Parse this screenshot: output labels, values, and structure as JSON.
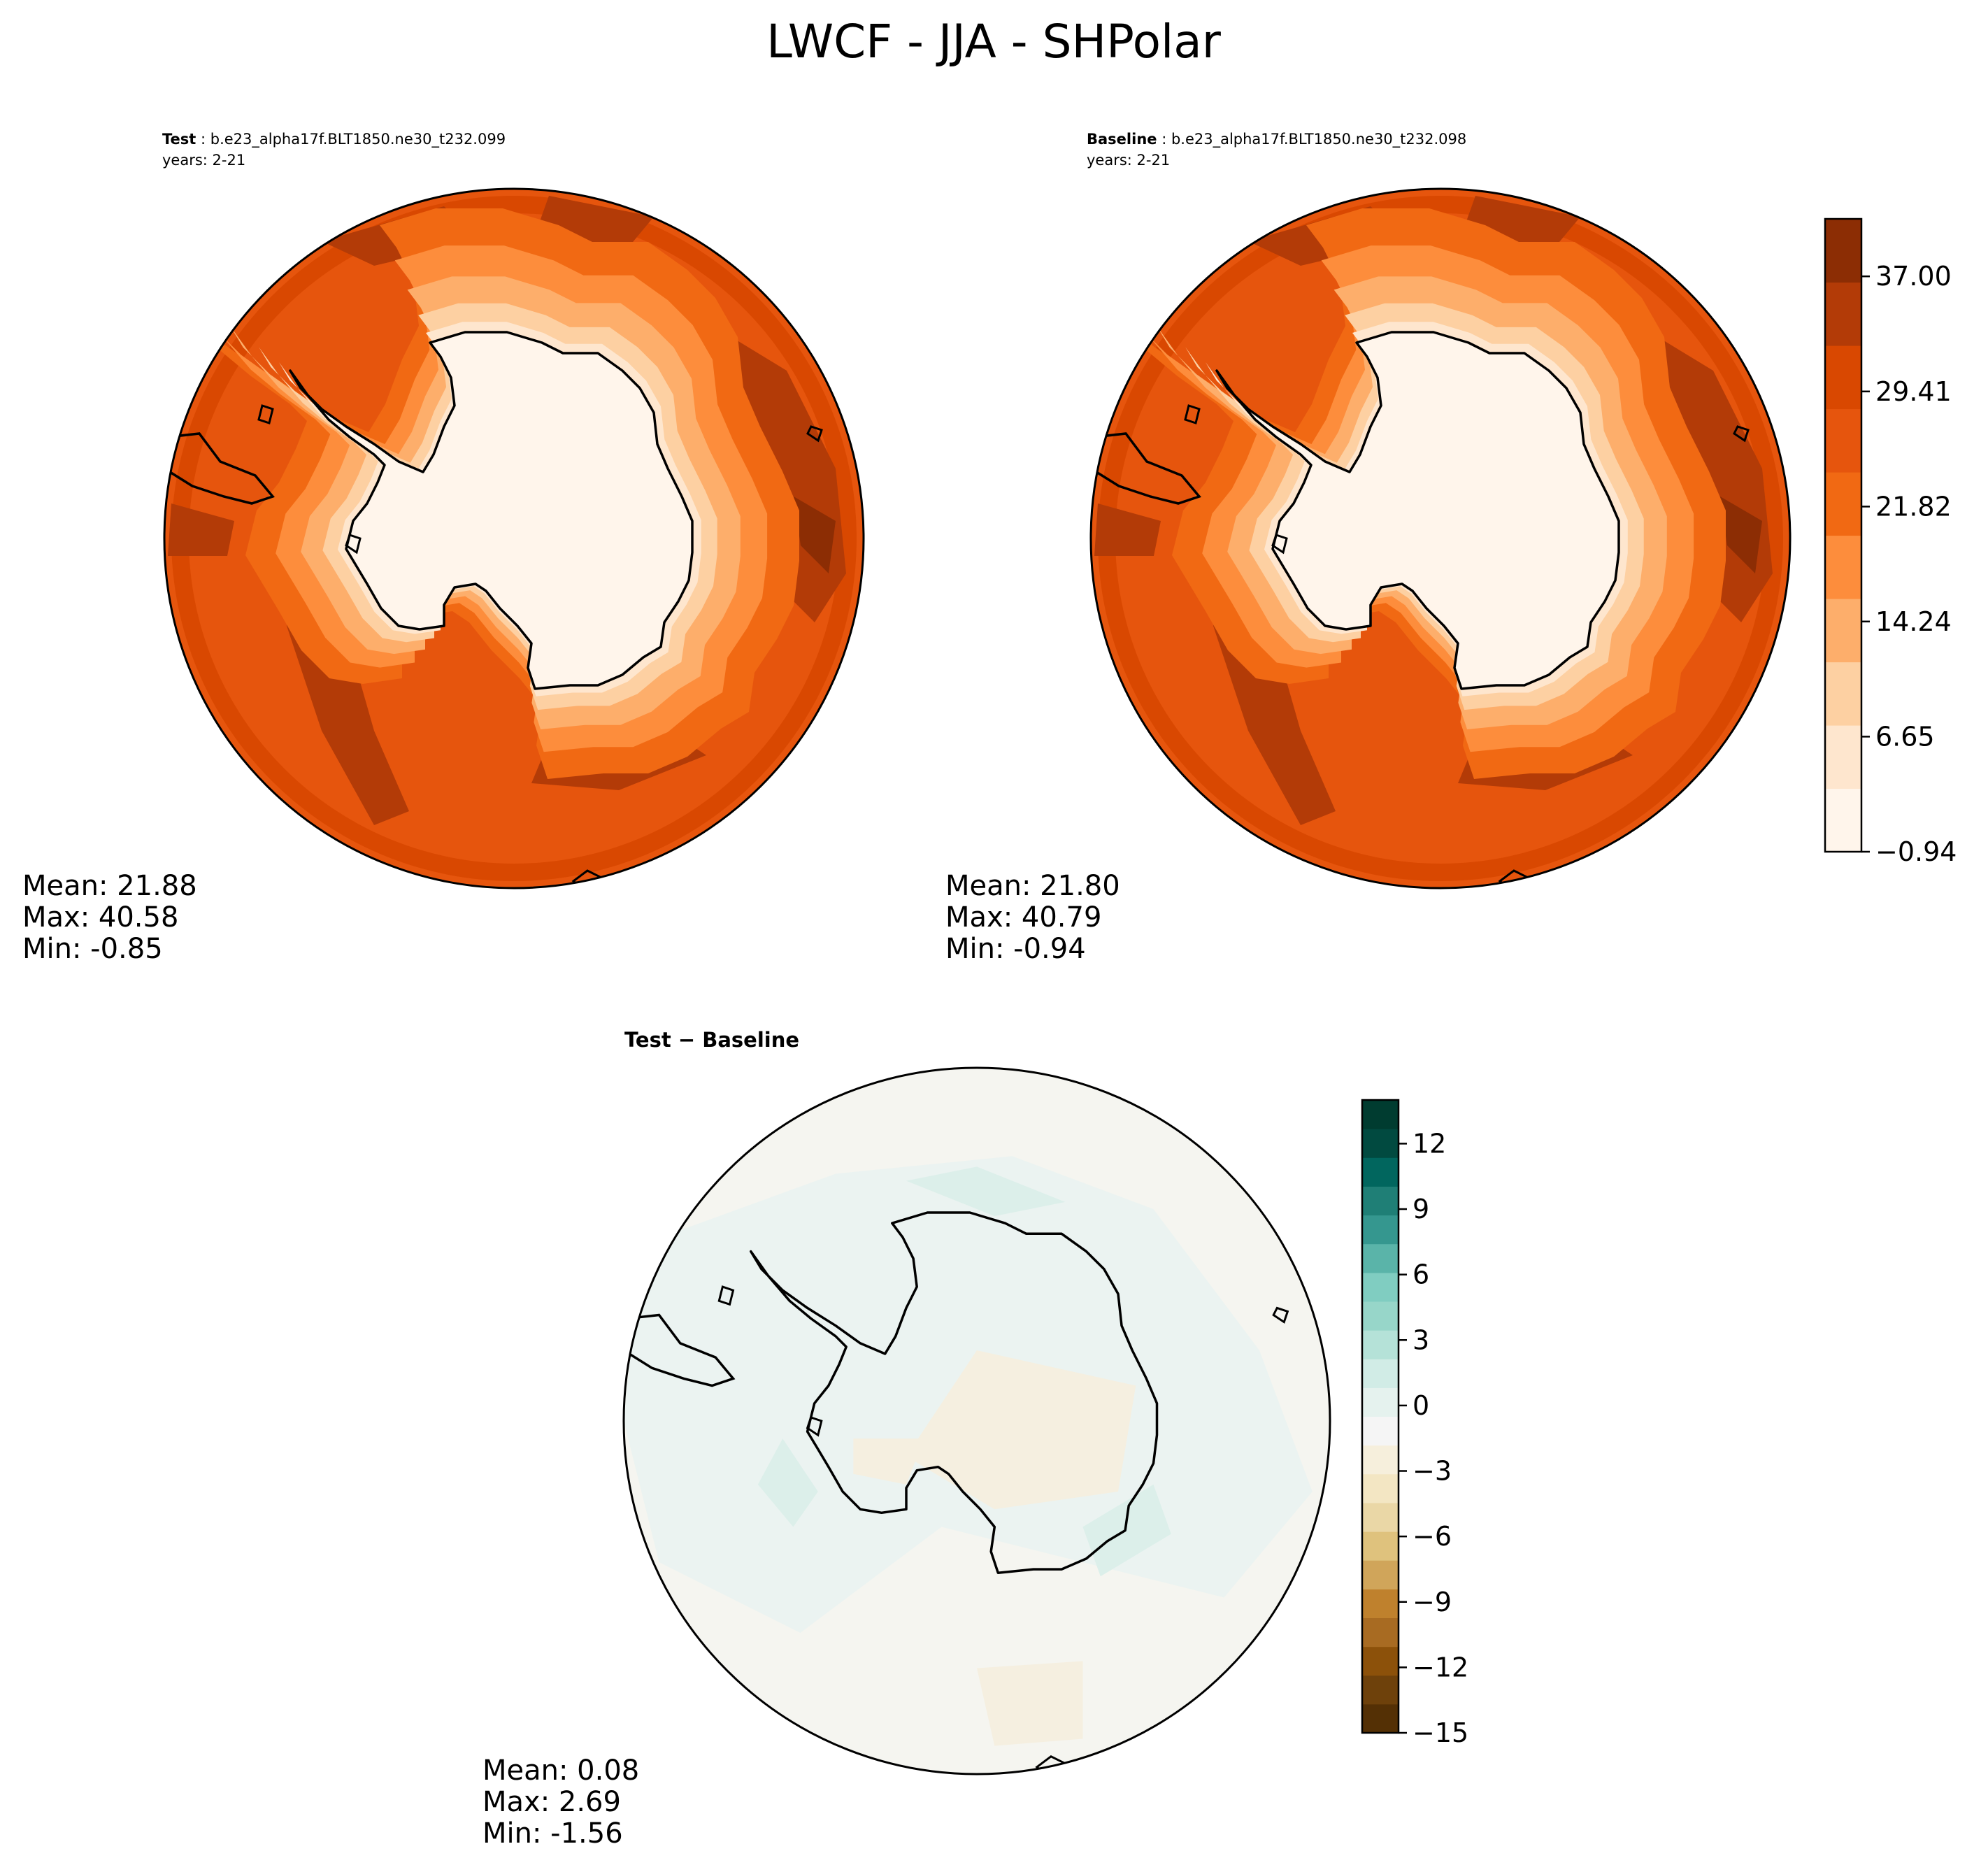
{
  "title": "LWCF - JJA - SHPolar",
  "palettes": {
    "field": [
      "#fff5eb",
      "#fee6ce",
      "#fdd0a2",
      "#fdae6b",
      "#fd8d3c",
      "#f16913",
      "#e6550d",
      "#d94801",
      "#b33b07",
      "#8c2d04"
    ],
    "diff": [
      "#543005",
      "#6e410b",
      "#8c510a",
      "#a86b22",
      "#bf812d",
      "#d0a55a",
      "#dfc27d",
      "#eaD7a6",
      "#f3e6c3",
      "#f6efdc",
      "#f5f5f5",
      "#e5f2ee",
      "#d1ece6",
      "#b5e2d8",
      "#97d6c9",
      "#80cdc1",
      "#5ab4a9",
      "#35978f",
      "#1f7f76",
      "#01665e",
      "#014a40",
      "#003c30"
    ],
    "coast": "#000000"
  },
  "panels": {
    "test": {
      "label_bold": "Test",
      "label_rest": " : b.e23_alpha17f.BLT1850.ne30_t232.099",
      "years": "years: 2-21",
      "stats": [
        "Mean: 21.88",
        "Max: 40.58",
        "Min: -0.85"
      ]
    },
    "baseline": {
      "label_bold": "Baseline",
      "label_rest": " : b.e23_alpha17f.BLT1850.ne30_t232.098",
      "years": "years: 2-21",
      "stats": [
        "Mean: 21.80",
        "Max: 40.79",
        "Min: -0.94"
      ]
    },
    "diff": {
      "label": "Test − Baseline",
      "stats": [
        "Mean:  0.08",
        "Max:  2.69",
        "Min: -1.56"
      ]
    }
  },
  "chart_data": [
    {
      "type": "heatmap",
      "projection": "South Polar Stereographic",
      "name": "Test",
      "stats": {
        "mean": 21.88,
        "max": 40.58,
        "min": -0.85
      },
      "range": [
        -0.94,
        40.79
      ]
    },
    {
      "type": "heatmap",
      "projection": "South Polar Stereographic",
      "name": "Baseline",
      "stats": {
        "mean": 21.8,
        "max": 40.79,
        "min": -0.94
      },
      "range": [
        -0.94,
        40.79
      ],
      "colorbar": {
        "ticks": [
          -0.94,
          6.65,
          14.24,
          21.82,
          29.41,
          37.0
        ],
        "tick_labels": [
          "−0.94",
          "6.65",
          "14.24",
          "21.82",
          "29.41",
          "37.00"
        ],
        "levels": 10
      }
    },
    {
      "type": "heatmap",
      "projection": "South Polar Stereographic",
      "name": "Test − Baseline",
      "stats": {
        "mean": 0.08,
        "max": 2.69,
        "min": -1.56
      },
      "range": [
        -15,
        14
      ],
      "colorbar": {
        "ticks": [
          -15,
          -12,
          -9,
          -6,
          -3,
          0,
          3,
          6,
          9,
          12
        ],
        "tick_labels": [
          "−15",
          "−12",
          "−9",
          "−6",
          "−3",
          "0",
          "3",
          "6",
          "9",
          "12"
        ],
        "levels": 22
      }
    }
  ]
}
